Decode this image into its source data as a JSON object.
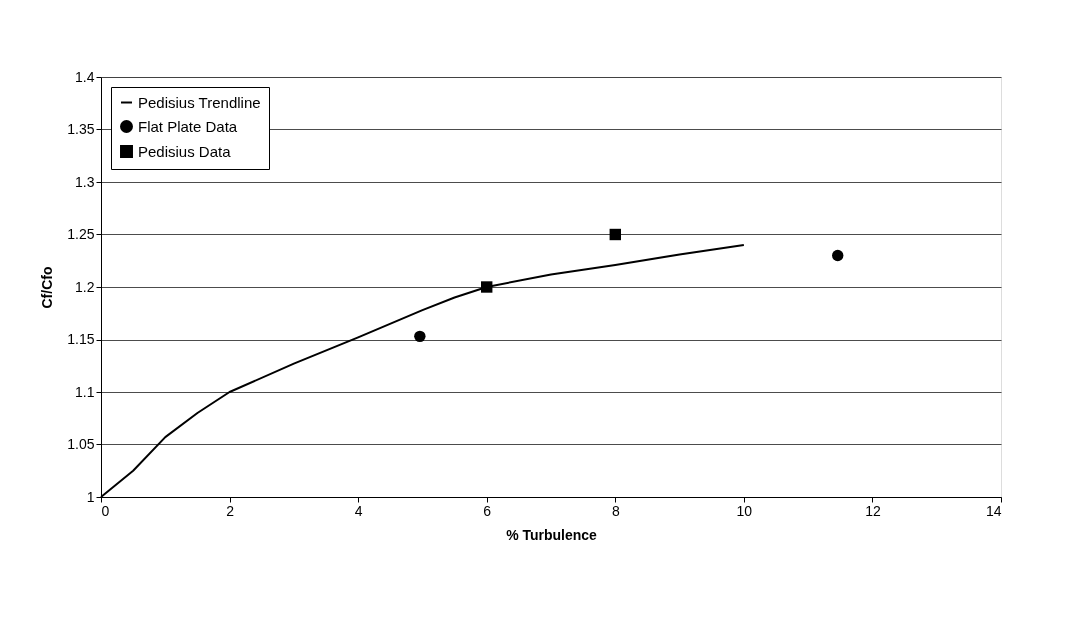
{
  "chart_data": {
    "type": "scatter",
    "xlabel": "% Turbulence",
    "ylabel": "Cf/Cfo",
    "xlim": [
      0,
      14
    ],
    "xticks": [
      0,
      2,
      4,
      6,
      8,
      10,
      12,
      14
    ],
    "ylim": [
      1,
      1.4
    ],
    "yticks": [
      1,
      1.05,
      1.1,
      1.15,
      1.2,
      1.25,
      1.3,
      1.35,
      1.4
    ],
    "grid": "y",
    "legend": "top left",
    "series": [
      {
        "name": "Pedisius Trendline",
        "type": "line",
        "color": "#000000",
        "marker": "none",
        "line_style": "solid",
        "x": [
          0,
          0.5,
          1,
          1.5,
          2,
          3,
          4,
          5,
          5.5,
          6,
          7,
          8,
          9,
          10
        ],
        "values": [
          1,
          1.025,
          1.057,
          1.08,
          1.1,
          1.127,
          1.152,
          1.178,
          1.19,
          1.2,
          1.212,
          1.221,
          1.231,
          1.24
        ]
      },
      {
        "name": "Flat Plate Data",
        "color": "#000000",
        "marker": "circle",
        "x": [
          4.96,
          11.46
        ],
        "values": [
          1.153,
          1.23
        ]
      },
      {
        "name": "Pedisius Data",
        "color": "#000000",
        "marker": "square",
        "x": [
          6,
          8
        ],
        "values": [
          1.2,
          1.25
        ]
      }
    ]
  }
}
